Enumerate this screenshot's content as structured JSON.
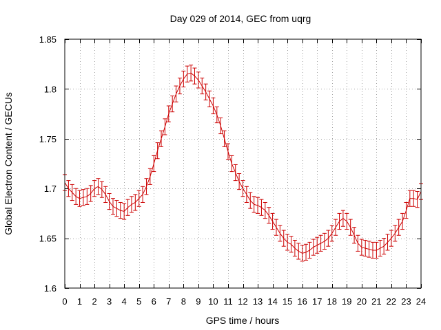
{
  "chart_data": {
    "type": "line",
    "title": "Day 029 of 2014, GEC from uqrg",
    "xlabel": "GPS time / hours",
    "ylabel": "Global Electron Content / GECUs",
    "xlim": [
      0,
      24
    ],
    "ylim": [
      1.6,
      1.85
    ],
    "grid": true,
    "xticks": [
      "0",
      "1",
      "2",
      "3",
      "4",
      "5",
      "6",
      "7",
      "8",
      "9",
      "10",
      "11",
      "12",
      "13",
      "14",
      "15",
      "16",
      "17",
      "18",
      "19",
      "20",
      "21",
      "22",
      "23",
      "24"
    ],
    "yticks": [
      "1.6",
      "1.65",
      "1.7",
      "1.75",
      "1.8",
      "1.85"
    ],
    "series": [
      {
        "name": "GEC",
        "color": "#cc0000",
        "error": 0.008,
        "x": [
          0,
          0.25,
          0.5,
          0.75,
          1,
          1.25,
          1.5,
          1.75,
          2,
          2.25,
          2.5,
          2.75,
          3,
          3.25,
          3.5,
          3.75,
          4,
          4.25,
          4.5,
          4.75,
          5,
          5.25,
          5.5,
          5.75,
          6,
          6.25,
          6.5,
          6.75,
          7,
          7.25,
          7.5,
          7.75,
          8,
          8.25,
          8.5,
          8.75,
          9,
          9.25,
          9.5,
          9.75,
          10,
          10.25,
          10.5,
          10.75,
          11,
          11.25,
          11.5,
          11.75,
          12,
          12.25,
          12.5,
          12.75,
          13,
          13.25,
          13.5,
          13.75,
          14,
          14.25,
          14.5,
          14.75,
          15,
          15.25,
          15.5,
          15.75,
          16,
          16.25,
          16.5,
          16.75,
          17,
          17.25,
          17.5,
          17.75,
          18,
          18.25,
          18.5,
          18.75,
          19,
          19.25,
          19.5,
          19.75,
          20,
          20.25,
          20.5,
          20.75,
          21,
          21.25,
          21.5,
          21.75,
          22,
          22.25,
          22.5,
          22.75,
          23,
          23.25,
          23.5,
          23.75,
          24
        ],
        "values": [
          1.706,
          1.7,
          1.696,
          1.692,
          1.69,
          1.691,
          1.692,
          1.695,
          1.7,
          1.702,
          1.699,
          1.694,
          1.687,
          1.682,
          1.68,
          1.678,
          1.677,
          1.681,
          1.684,
          1.686,
          1.69,
          1.694,
          1.702,
          1.712,
          1.725,
          1.738,
          1.75,
          1.762,
          1.775,
          1.785,
          1.795,
          1.803,
          1.81,
          1.815,
          1.816,
          1.813,
          1.809,
          1.803,
          1.797,
          1.79,
          1.783,
          1.774,
          1.763,
          1.75,
          1.737,
          1.725,
          1.716,
          1.707,
          1.7,
          1.694,
          1.688,
          1.684,
          1.683,
          1.681,
          1.678,
          1.673,
          1.667,
          1.661,
          1.655,
          1.65,
          1.646,
          1.644,
          1.64,
          1.637,
          1.635,
          1.636,
          1.638,
          1.641,
          1.643,
          1.645,
          1.647,
          1.65,
          1.655,
          1.661,
          1.667,
          1.67,
          1.667,
          1.661,
          1.653,
          1.645,
          1.641,
          1.64,
          1.639,
          1.638,
          1.638,
          1.64,
          1.642,
          1.646,
          1.65,
          1.655,
          1.661,
          1.667,
          1.678,
          1.69,
          1.69,
          1.689,
          1.697
        ]
      }
    ]
  }
}
